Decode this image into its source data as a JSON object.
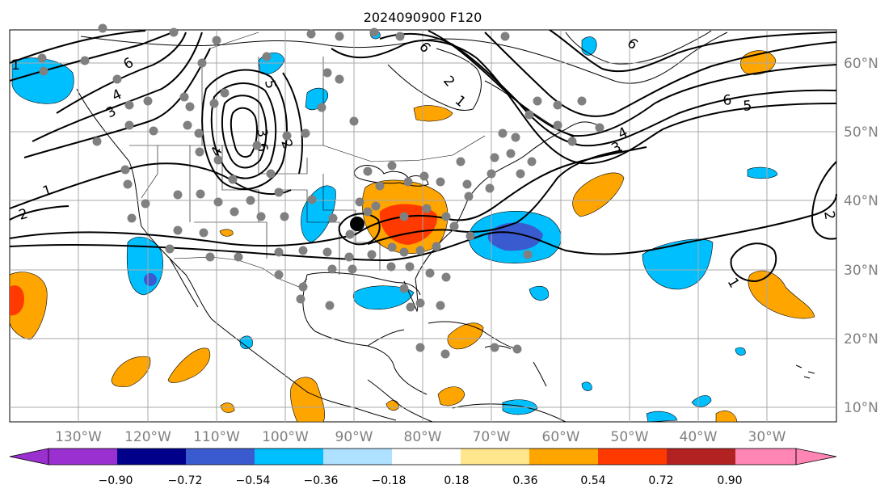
{
  "title": "2024090900 F120",
  "map": {
    "lon_labels": [
      "130°W",
      "120°W",
      "110°W",
      "100°W",
      "90°W",
      "80°W",
      "70°W",
      "60°W",
      "50°W",
      "40°W",
      "30°W"
    ],
    "lat_labels": [
      "60°N",
      "50°N",
      "40°N",
      "30°N",
      "20°N",
      "10°N"
    ],
    "contour_labels": [
      "1",
      "2",
      "3",
      "4",
      "6",
      "1",
      "2",
      "3",
      "4",
      "5",
      "6",
      "6",
      "3",
      "4",
      "6",
      "5",
      "6",
      "2",
      "1",
      "1",
      "2"
    ]
  },
  "colorbar": {
    "ticks": [
      "−0.90",
      "−0.72",
      "−0.54",
      "−0.36",
      "−0.18",
      "0.18",
      "0.36",
      "0.54",
      "0.72",
      "0.90"
    ],
    "colors": [
      "#9b30d0",
      "#00008b",
      "#3a5bd0",
      "#00bfff",
      "#aee0ff",
      "#ffffff",
      "#ffe68c",
      "#ffa500",
      "#ff3a00",
      "#b22222",
      "#ff85b4"
    ]
  },
  "colors": {
    "grid": "#a8a8a8",
    "station_dot": "#808080",
    "contour": "#000000"
  }
}
